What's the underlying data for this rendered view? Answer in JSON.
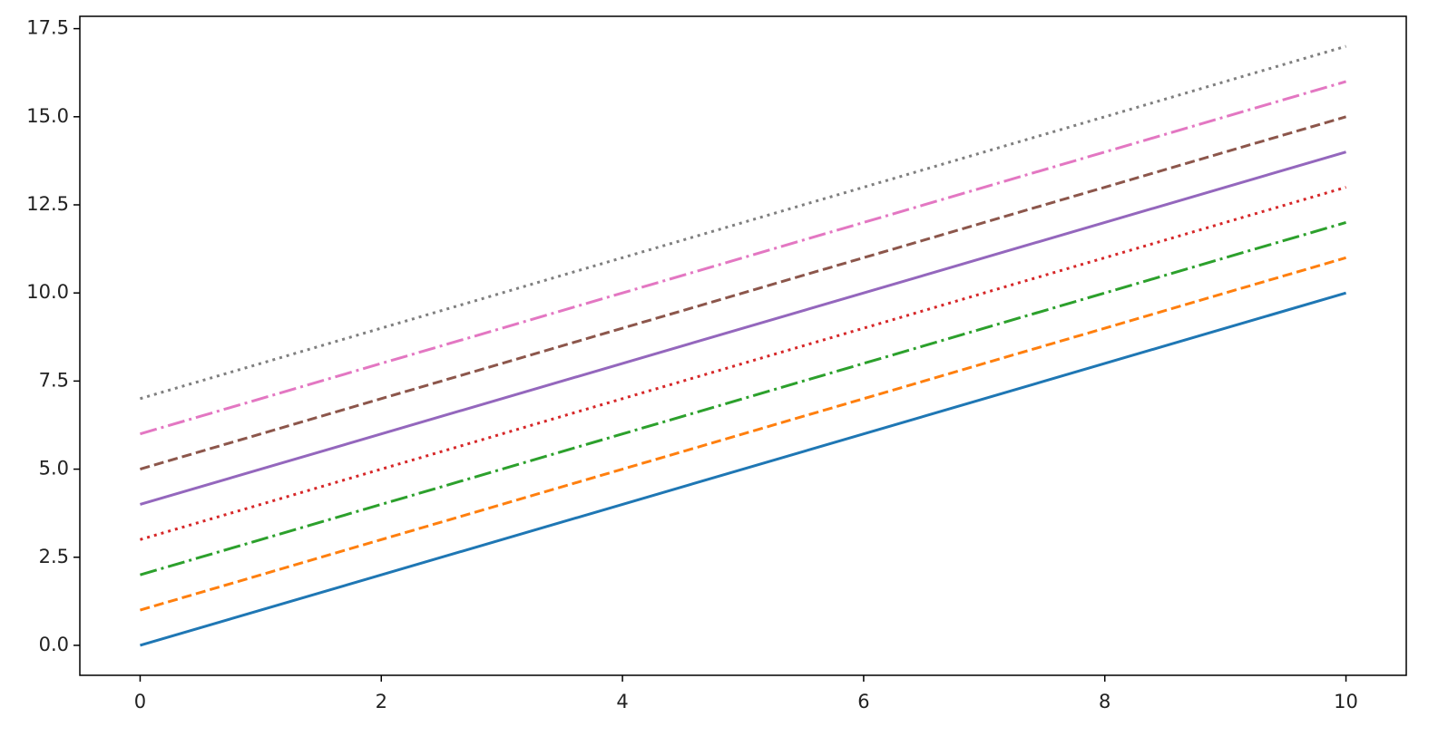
{
  "chart_data": {
    "type": "line",
    "x": [
      0,
      10
    ],
    "series": [
      {
        "color": "#1f77b4",
        "linestyle": "solid",
        "values": [
          0,
          10
        ]
      },
      {
        "color": "#ff7f0e",
        "linestyle": "dashed",
        "values": [
          1,
          11
        ]
      },
      {
        "color": "#2ca02c",
        "linestyle": "dashdot",
        "values": [
          2,
          12
        ]
      },
      {
        "color": "#d62728",
        "linestyle": "dotted",
        "values": [
          3,
          13
        ]
      },
      {
        "color": "#9467bd",
        "linestyle": "solid",
        "values": [
          4,
          14
        ]
      },
      {
        "color": "#8c564b",
        "linestyle": "dashed",
        "values": [
          5,
          15
        ]
      },
      {
        "color": "#e377c2",
        "linestyle": "dashdot",
        "values": [
          6,
          16
        ]
      },
      {
        "color": "#7f7f7f",
        "linestyle": "dotted",
        "values": [
          7,
          17
        ]
      }
    ],
    "xlim": [
      -0.5,
      10.5
    ],
    "xticks": [
      0,
      2,
      4,
      6,
      8,
      10
    ],
    "ylim": [
      -0.85,
      17.85
    ],
    "yticks": [
      {
        "value": 0,
        "label": "0.0"
      },
      2.5,
      {
        "value": 5,
        "label": "5.0"
      },
      7.5,
      {
        "value": 10,
        "label": "10.0"
      },
      12.5,
      {
        "value": 15,
        "label": "15.0"
      },
      17.5
    ],
    "grid": false
  }
}
